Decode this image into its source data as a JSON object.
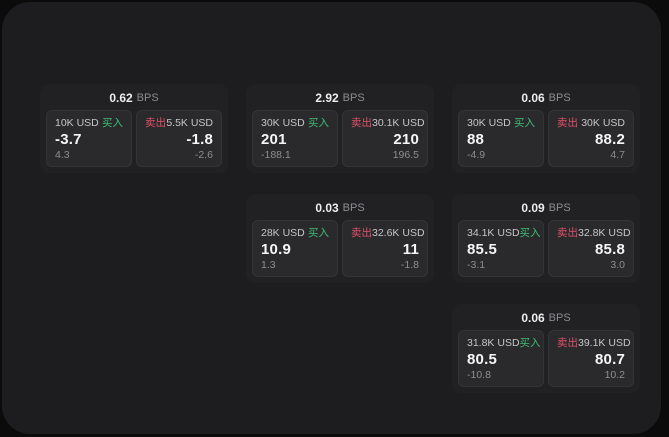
{
  "labels": {
    "buy": "买入",
    "sell": "卖出",
    "bps_unit": "BPS"
  },
  "colors": {
    "buy_green": "#3ebd75",
    "sell_red": "#e05068",
    "panel_bg": "#1d1d1f",
    "card_bg": "#212123",
    "tile_bg": "#2a2a2c"
  },
  "cards": [
    {
      "bps": "0.62",
      "buy_amount": "10K USD",
      "buy_price": "-3.7",
      "buy_sub": "4.3",
      "sell_amount": "5.5K USD",
      "sell_price": "-1.8",
      "sell_sub": "-2.6"
    },
    {
      "bps": "2.92",
      "buy_amount": "30K USD",
      "buy_price": "201",
      "buy_sub": "-188.1",
      "sell_amount": "30.1K USD",
      "sell_price": "210",
      "sell_sub": "196.5"
    },
    {
      "bps": "0.06",
      "buy_amount": "30K USD",
      "buy_price": "88",
      "buy_sub": "-4.9",
      "sell_amount": "30K USD",
      "sell_price": "88.2",
      "sell_sub": "4.7"
    },
    {
      "bps": "0.03",
      "buy_amount": "28K USD",
      "buy_price": "10.9",
      "buy_sub": "1.3",
      "sell_amount": "32.6K USD",
      "sell_price": "11",
      "sell_sub": "-1.8"
    },
    {
      "bps": "0.09",
      "buy_amount": "34.1K USD",
      "buy_price": "85.5",
      "buy_sub": "-3.1",
      "sell_amount": "32.8K USD",
      "sell_price": "85.8",
      "sell_sub": "3.0"
    },
    {
      "bps": "0.06",
      "buy_amount": "31.8K USD",
      "buy_price": "80.5",
      "buy_sub": "-10.8",
      "sell_amount": "39.1K USD",
      "sell_price": "80.7",
      "sell_sub": "10.2"
    }
  ]
}
